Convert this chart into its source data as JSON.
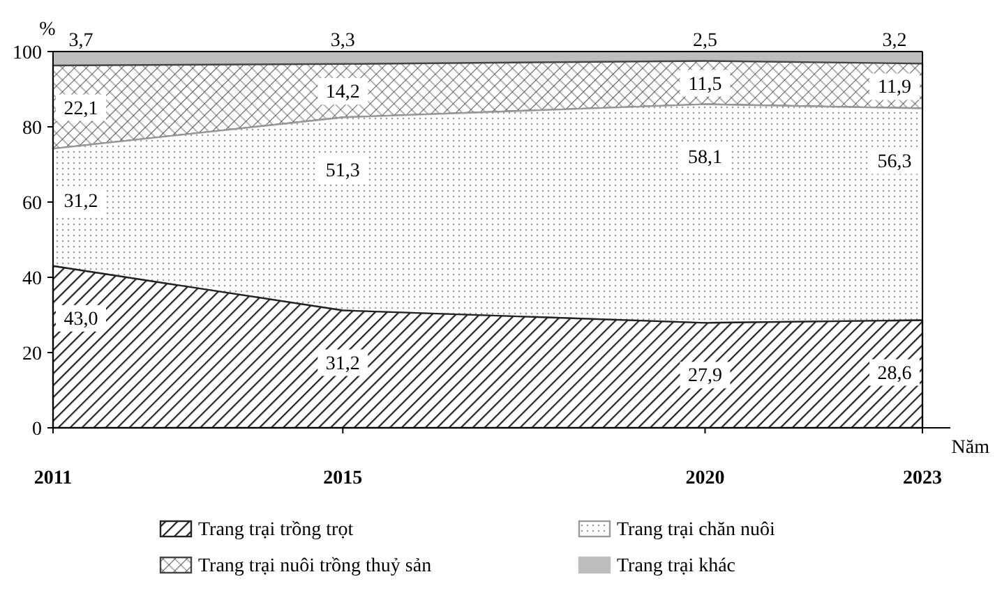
{
  "chart_data": {
    "type": "area",
    "stacked": true,
    "xlabel": "Năm",
    "ylabel": "%",
    "x": [
      2011,
      2015,
      2020,
      2023
    ],
    "xlim": [
      2011,
      2023
    ],
    "xticks": [
      2011,
      2015,
      2020,
      2023
    ],
    "ylim": [
      0,
      100
    ],
    "yticks": [
      0,
      20,
      40,
      60,
      80,
      100
    ],
    "grid": false,
    "legend": "bottom",
    "series": [
      {
        "name": "Trang trại trồng trọt",
        "color": "#222222",
        "values": [
          43.0,
          31.2,
          27.9,
          28.6
        ],
        "value_labels": [
          "43,0",
          "31,2",
          "27,9",
          "28,6"
        ]
      },
      {
        "name": "Trang trại chăn nuôi",
        "color": "#999999",
        "values": [
          31.2,
          51.3,
          58.1,
          56.3
        ],
        "value_labels": [
          "31,2",
          "51,3",
          "58,1",
          "56,3"
        ]
      },
      {
        "name": "Trang trại nuôi trồng thuỷ sản",
        "color": "#444444",
        "values": [
          22.1,
          14.2,
          11.5,
          11.9
        ],
        "value_labels": [
          "22,1",
          "14,2",
          "11,5",
          "11,9"
        ]
      },
      {
        "name": "Trang trại khác",
        "color": "#bdbdbd",
        "values": [
          3.7,
          3.3,
          2.5,
          3.2
        ],
        "value_labels": [
          "3,7",
          "3,3",
          "2,5",
          "3,2"
        ]
      }
    ]
  }
}
